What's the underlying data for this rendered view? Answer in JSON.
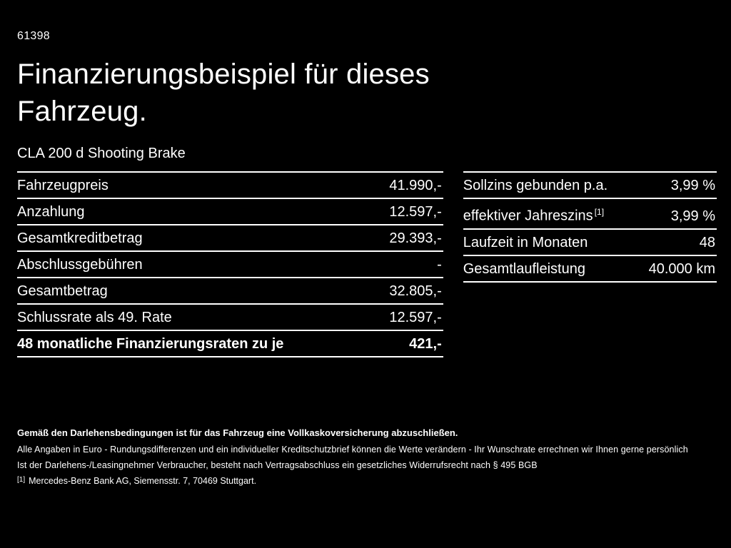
{
  "page": {
    "doc_id": "61398",
    "title": "Finanzierungsbeispiel für dieses Fahrzeug.",
    "model": "CLA 200 d Shooting Brake"
  },
  "colors": {
    "background": "#000000",
    "text": "#ffffff"
  },
  "left_table": {
    "rows": [
      {
        "label": "Fahrzeugpreis",
        "value": "41.990,-"
      },
      {
        "label": "Anzahlung",
        "value": "12.597,-"
      },
      {
        "label": "Gesamtkreditbetrag",
        "value": "29.393,-"
      },
      {
        "label": "Abschlussgebühren",
        "value": "-"
      },
      {
        "label": "Gesamtbetrag",
        "value": "32.805,-"
      },
      {
        "label": "Schlussrate als 49. Rate",
        "value": "12.597,-"
      },
      {
        "label": "48 monatliche Finanzierungsraten zu je",
        "value": "421,-"
      }
    ]
  },
  "right_table": {
    "rows": [
      {
        "label": "Sollzins gebunden p.a.",
        "value": "3,99 %"
      },
      {
        "label": "effektiver Jahreszins",
        "sup": "[1]",
        "value": "3,99 %"
      },
      {
        "label": "Laufzeit in Monaten",
        "value": "48"
      },
      {
        "label": "Gesamtlaufleistung",
        "value": "40.000 km"
      }
    ]
  },
  "footer": {
    "bold_line": "Gemäß den Darlehensbedingungen ist für das Fahrzeug eine Vollkaskoversicherung abzuschließen.",
    "line2": "Alle Angaben in Euro - Rundungsdifferenzen und ein individueller Kreditschutzbrief können die Werte verändern - Ihr Wunschrate errechnen wir Ihnen gerne persönlich",
    "line3": "Ist der Darlehens-/Leasingnehmer Verbraucher, besteht nach Vertragsabschluss ein gesetzliches Widerrufsrecht nach § 495 BGB",
    "footnote_marker": "[1]",
    "footnote_text": "Mercedes-Benz Bank AG, Siemensstr. 7, 70469 Stuttgart."
  }
}
